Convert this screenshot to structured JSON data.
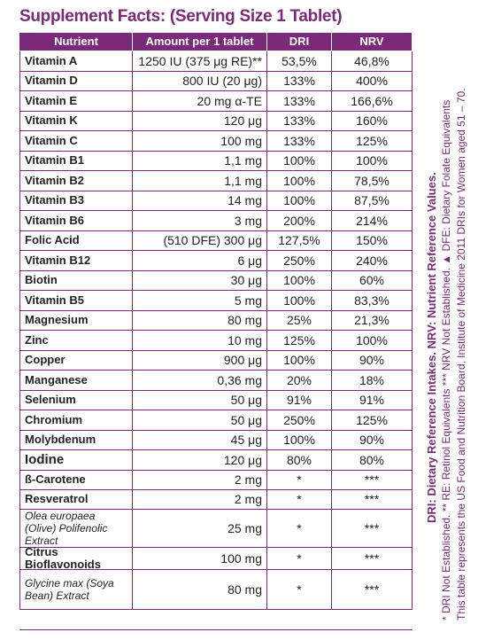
{
  "title": "Supplement Facts: (Serving Size 1 Tablet)",
  "table": {
    "headers": [
      "Nutrient",
      "Amount per 1 tablet",
      "DRI",
      "NRV"
    ],
    "rows": [
      [
        "Vitamin A",
        "1250 IU (375 μg RE)**",
        "53,5%",
        "46,8%"
      ],
      [
        "Vitamin D",
        "800 IU (20 μg)",
        "133%",
        "400%"
      ],
      [
        "Vitamin E",
        "20 mg α-TE",
        "133%",
        "166,6%"
      ],
      [
        "Vitamin K",
        "120 μg",
        "133%",
        "160%"
      ],
      [
        "Vitamin C",
        "100 mg",
        "133%",
        "125%"
      ],
      [
        "Vitamin B1",
        "1,1 mg",
        "100%",
        "100%"
      ],
      [
        "Vitamin B2",
        "1,1 mg",
        "100%",
        "78,5%"
      ],
      [
        "Vitamin B3",
        "14 mg",
        "100%",
        "87,5%"
      ],
      [
        "Vitamin B6",
        "3 mg",
        "200%",
        "214%"
      ],
      [
        "Folic Acid",
        "(510 DFE) 300 μg",
        "127,5%",
        "150%"
      ],
      [
        "Vitamin B12",
        "6 μg",
        "250%",
        "240%"
      ],
      [
        "Biotin",
        "30 μg",
        "100%",
        "60%"
      ],
      [
        "Vitamin B5",
        "5 mg",
        "100%",
        "83,3%"
      ],
      [
        "Magnesium",
        "80 mg",
        "25%",
        "21,3%"
      ],
      [
        "Zinc",
        "10 mg",
        "125%",
        "100%"
      ],
      [
        "Copper",
        "900 μg",
        "100%",
        "90%"
      ],
      [
        "Manganese",
        "0,36 mg",
        "20%",
        "18%"
      ],
      [
        "Selenium",
        "50 μg",
        "91%",
        "91%"
      ],
      [
        "Chromium",
        "50 μg",
        "250%",
        "125%"
      ],
      [
        "Molybdenum",
        "45 μg",
        "100%",
        "90%"
      ],
      [
        "Iodine",
        "120 μg",
        "80%",
        "80%"
      ],
      [
        "ß-Carotene",
        "2 mg",
        "*",
        "***"
      ],
      [
        "Resveratrol",
        "2 mg",
        "*",
        "***"
      ],
      [
        "Olea europaea (Olive) Polifenolic Extract",
        "25 mg",
        "*",
        "***"
      ],
      [
        "Citrus Bioflavonoids",
        "100 mg",
        "*",
        "***"
      ],
      [
        "Glycine max (Soya Bean) Extract",
        "80 mg",
        "*",
        "***"
      ]
    ]
  },
  "footnotes": [
    "DRI: Dietary Reference Intakes. NRV: Nutrient Reference Values.",
    "* DRI Not Established.  ** RE: Retinol Equivalents  *** NRV Not Established.  ▲ DFE: Dietary Folate Equivalents",
    "This table represents the US Food and Nutrition Board, Institute of Medicine 2011 DRIs for Women aged 51 – 70."
  ]
}
